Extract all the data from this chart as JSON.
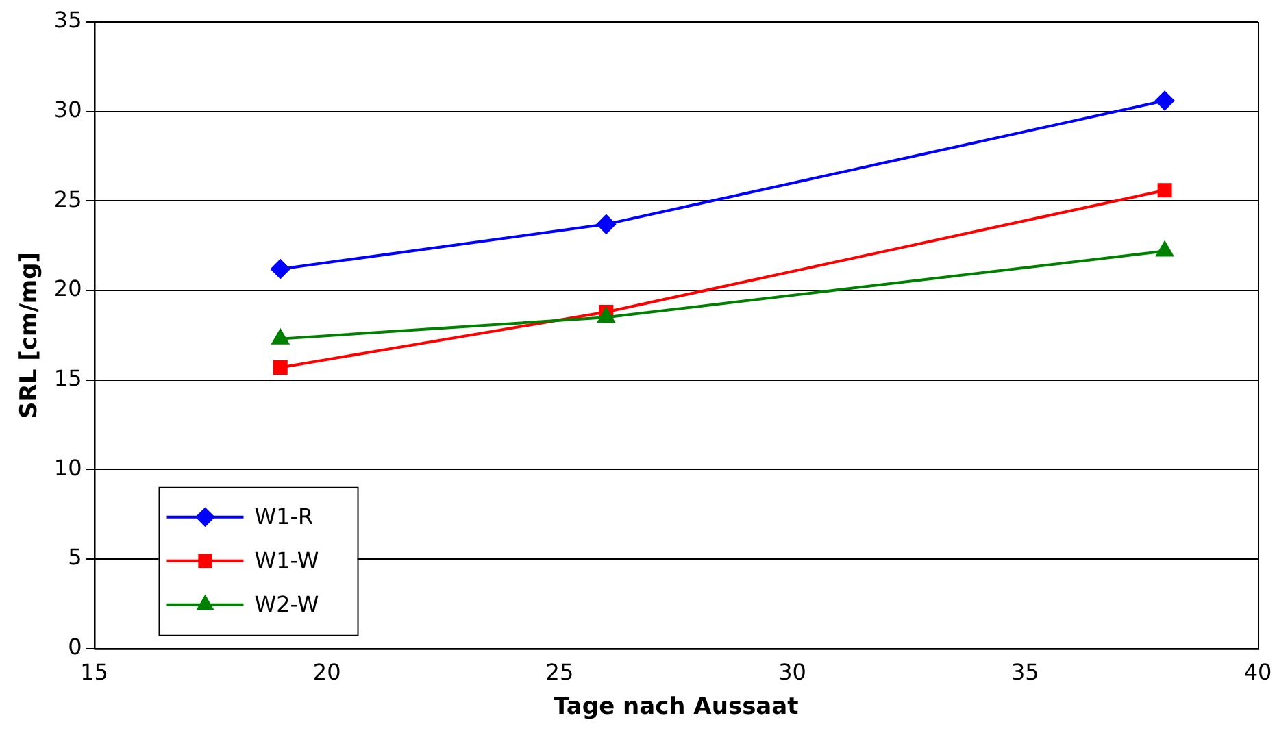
{
  "chart_data": {
    "type": "line",
    "xlabel": "Tage nach Aussaat",
    "ylabel": "SRL [cm/mg]",
    "x": [
      19,
      26,
      38
    ],
    "series": [
      {
        "name": "W1-R",
        "color": "#0000ff",
        "marker": "diamond",
        "values": [
          21.2,
          23.7,
          30.6
        ]
      },
      {
        "name": "W1-W",
        "color": "#ff0000",
        "marker": "square",
        "values": [
          15.7,
          18.8,
          25.6
        ]
      },
      {
        "name": "W2-W",
        "color": "#008000",
        "marker": "triangle",
        "values": [
          17.3,
          18.5,
          22.2
        ]
      }
    ],
    "xlim": [
      15,
      40
    ],
    "xticks": [
      15,
      20,
      25,
      30,
      35,
      40
    ],
    "ylim": [
      0,
      35
    ],
    "yticks": [
      0,
      5,
      10,
      15,
      20,
      25,
      30,
      35
    ],
    "grid": "y",
    "legend": "bottom left",
    "line_style": "solid"
  }
}
